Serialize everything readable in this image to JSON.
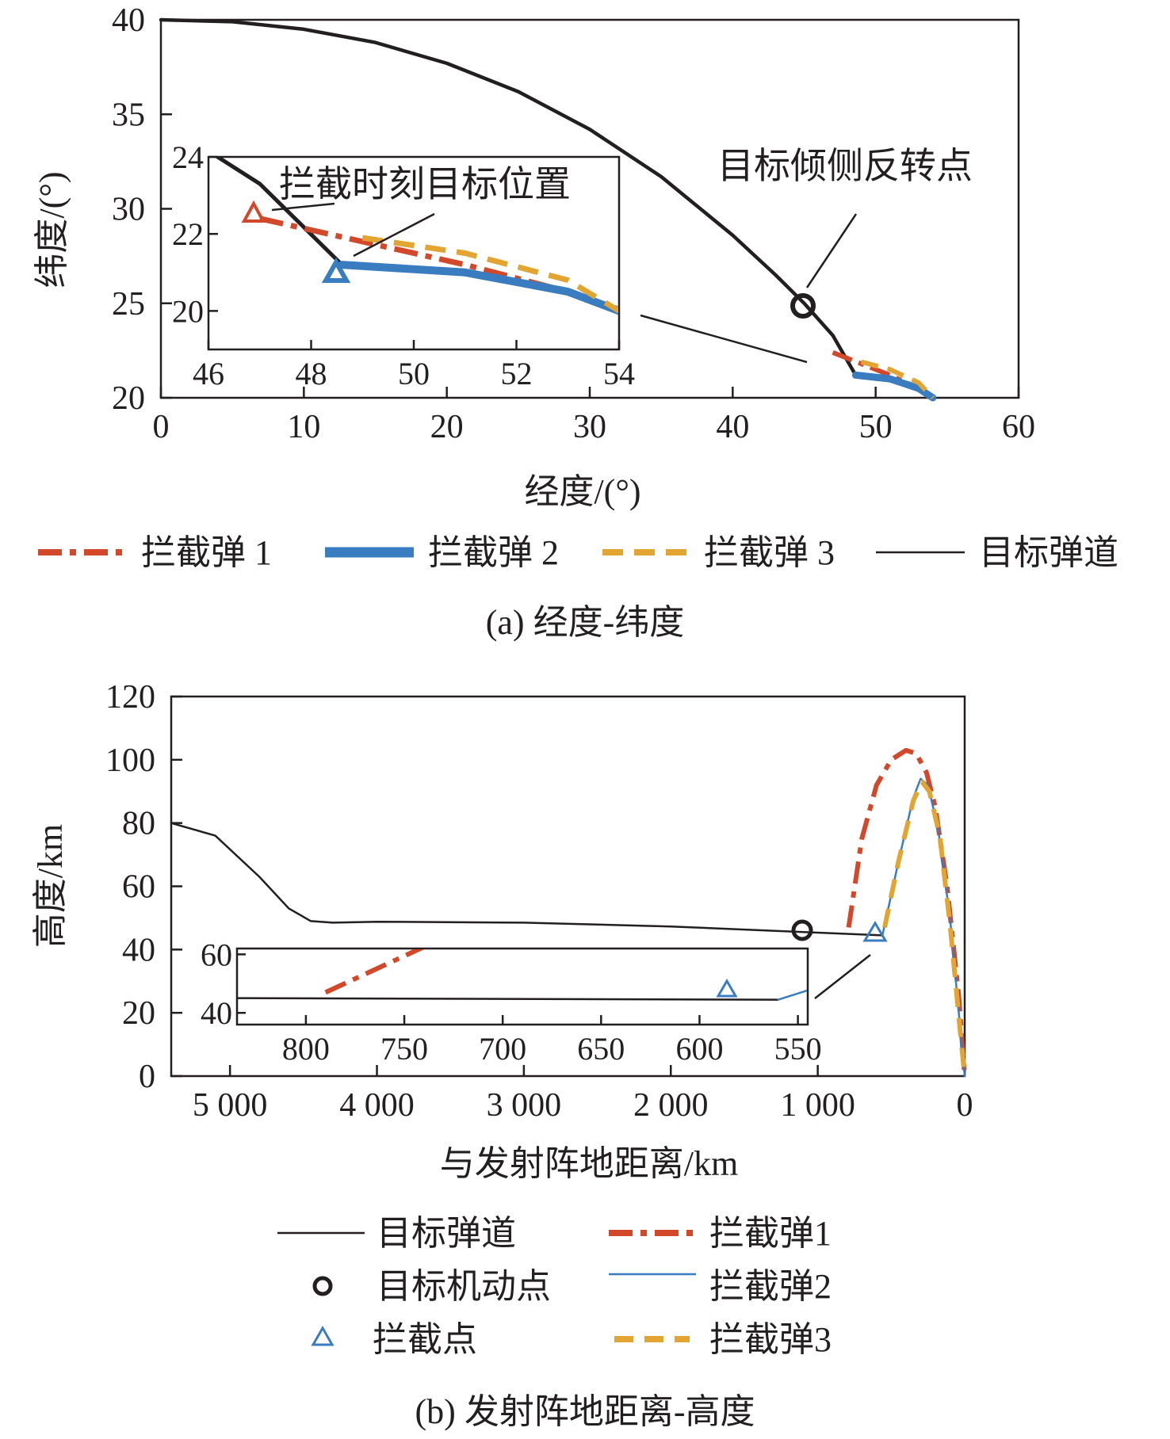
{
  "chart_data": [
    {
      "id": "a",
      "type": "line",
      "caption": "(a) 经度-纬度",
      "xlabel": "经度/(°)",
      "ylabel": "纬度/(°)",
      "xlim": [
        0,
        60
      ],
      "ylim": [
        20,
        40
      ],
      "xticks": [
        "0",
        "10",
        "20",
        "30",
        "40",
        "50",
        "60"
      ],
      "yticks": [
        "20",
        "25",
        "30",
        "35",
        "40"
      ],
      "colors": {
        "target": "#231f20",
        "int1": "#d1492a",
        "int2": "#3a7cc0",
        "int3": "#e3a532"
      },
      "series": [
        {
          "name": "目标弹道",
          "key": "target",
          "x": [
            0,
            5,
            10,
            15,
            20,
            25,
            30,
            35,
            40,
            43,
            45,
            47,
            48.6
          ],
          "y": [
            40,
            39.9,
            39.5,
            38.8,
            37.7,
            36.2,
            34.2,
            31.7,
            28.6,
            26.5,
            25.0,
            23.3,
            21.2
          ]
        },
        {
          "name": "拦截弹 1",
          "key": "int1",
          "x": [
            47,
            49,
            51,
            53,
            54
          ],
          "y": [
            22.4,
            21.8,
            21.2,
            20.5,
            20.0
          ]
        },
        {
          "name": "拦截弹 2",
          "key": "int2",
          "x": [
            48.6,
            51,
            53,
            54
          ],
          "y": [
            21.2,
            21.0,
            20.5,
            20.0
          ]
        },
        {
          "name": "拦截弹 3",
          "key": "int3",
          "x": [
            49,
            51,
            53,
            54
          ],
          "y": [
            21.9,
            21.5,
            20.8,
            20.0
          ]
        }
      ],
      "annotations": {
        "maneuver": "目标倾侧反转点",
        "intercept": "拦截时刻目标位置"
      },
      "inset": {
        "xlim": [
          46,
          54
        ],
        "ylim": [
          19,
          24
        ],
        "xticks": [
          "46",
          "48",
          "50",
          "52",
          "54"
        ],
        "yticks": [
          "20",
          "22",
          "24"
        ]
      },
      "legend": [
        {
          "label": "拦截弹 1",
          "key": "int1",
          "style": "dashdot"
        },
        {
          "label": "拦截弹 2",
          "key": "int2",
          "style": "thick"
        },
        {
          "label": "拦截弹 3",
          "key": "int3",
          "style": "dash"
        },
        {
          "label": "目标弹道",
          "key": "target",
          "style": "solid"
        }
      ]
    },
    {
      "id": "b",
      "type": "line",
      "caption": "(b) 发射阵地距离-高度",
      "xlabel": "与发射阵地距离/km",
      "ylabel": "高度/km",
      "xlim": [
        5400,
        0
      ],
      "ylim": [
        0,
        120
      ],
      "xticks": [
        "5 000",
        "4 000",
        "3 000",
        "2 000",
        "1 000",
        "0"
      ],
      "yticks": [
        "0",
        "20",
        "40",
        "60",
        "80",
        "100",
        "120"
      ],
      "series": [
        {
          "name": "目标弹道",
          "key": "target",
          "x": [
            5400,
            5100,
            4800,
            4600,
            4450,
            4300,
            4000,
            3000,
            2000,
            1080,
            560
          ],
          "y": [
            80,
            76,
            63,
            53,
            49,
            48.5,
            48.8,
            48.5,
            47.3,
            45.5,
            44.5
          ]
        },
        {
          "name": "拦截弹1",
          "key": "int1",
          "x": [
            790,
            700,
            600,
            500,
            400,
            330,
            260,
            200,
            120,
            40,
            0
          ],
          "y": [
            47,
            75,
            92,
            100,
            103,
            102,
            96,
            85,
            60,
            25,
            0
          ]
        },
        {
          "name": "拦截弹2",
          "key": "int2",
          "x": [
            560,
            450,
            350,
            300,
            250,
            180,
            100,
            30,
            0
          ],
          "y": [
            44.5,
            68,
            88,
            94,
            92,
            78,
            50,
            15,
            0
          ]
        },
        {
          "name": "拦截弹3",
          "key": "int3",
          "x": [
            545,
            450,
            350,
            290,
            240,
            170,
            100,
            30,
            0
          ],
          "y": [
            47,
            68,
            87,
            93,
            90,
            76,
            48,
            14,
            0
          ]
        }
      ],
      "markers": [
        {
          "name": "目标机动点",
          "x": 1080,
          "y": 45.5
        },
        {
          "name": "拦截点",
          "x": 560,
          "y": 44.5
        }
      ],
      "inset": {
        "xlim": [
          835,
          545
        ],
        "ylim": [
          36,
          62
        ],
        "xticks": [
          "800",
          "750",
          "700",
          "650",
          "600",
          "550"
        ],
        "yticks": [
          "40",
          "60"
        ]
      },
      "legend": [
        {
          "label": "目标弹道",
          "key": "target",
          "style": "solid"
        },
        {
          "label": "拦截弹1",
          "key": "int1",
          "style": "dashdot"
        },
        {
          "label": "目标机动点",
          "key": "maneuver",
          "style": "circle"
        },
        {
          "label": "拦截弹2",
          "key": "int2",
          "style": "thin"
        },
        {
          "label": "拦截点",
          "key": "intercept",
          "style": "triangle"
        },
        {
          "label": "拦截弹3",
          "key": "int3",
          "style": "dash"
        }
      ]
    }
  ]
}
